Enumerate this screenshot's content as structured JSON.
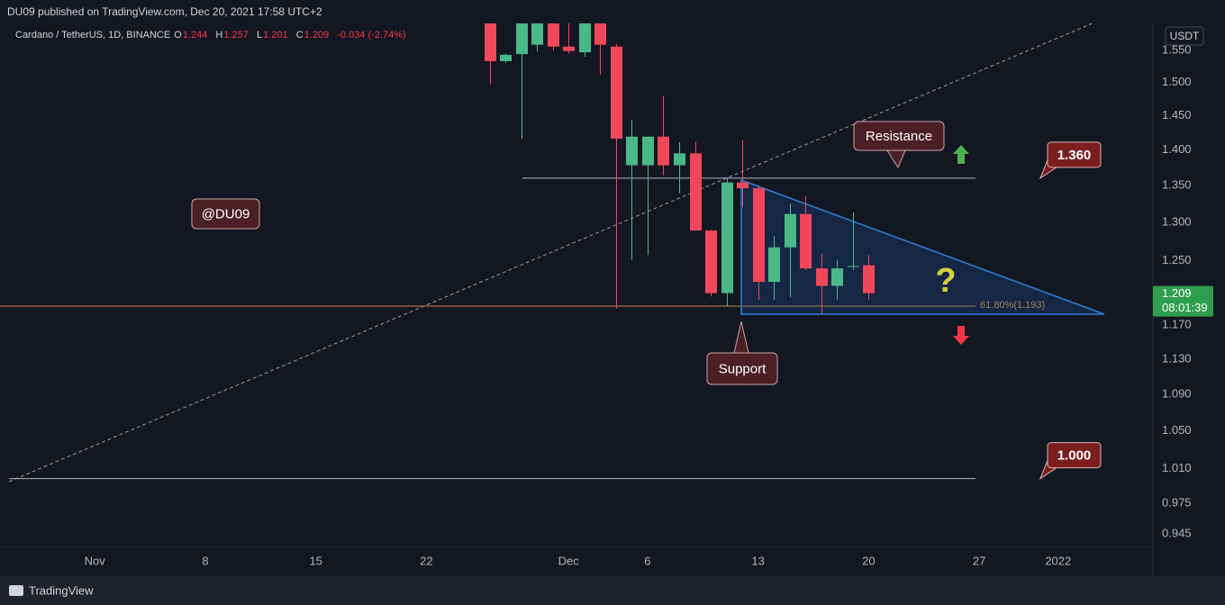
{
  "header": {
    "published": "DU09 published on TradingView.com, Dec 20, 2021 17:58 UTC+2"
  },
  "footer": {
    "brand": "TradingView"
  },
  "chart_data": {
    "type": "candlestick",
    "legend": {
      "symbol": "Cardano / TetherUS, 1D, BINANCE",
      "o_key": "O",
      "open": "1.244",
      "h_key": "H",
      "high": "1.257",
      "l_key": "L",
      "low": "1.201",
      "c_key": "C",
      "close": "1.209",
      "change": "-0.034 (-2.74%)"
    },
    "unit": "USDT",
    "log_scale": true,
    "up_color": "#4bb889",
    "down_color": "#f0485a",
    "x": [
      "2021-11-26",
      "2021-11-27",
      "2021-11-28",
      "2021-11-29",
      "2021-11-30",
      "2021-12-01",
      "2021-12-02",
      "2021-12-03",
      "2021-12-04",
      "2021-12-05",
      "2021-12-06",
      "2021-12-07",
      "2021-12-08",
      "2021-12-09",
      "2021-12-10",
      "2021-12-11",
      "2021-12-12",
      "2021-12-13",
      "2021-12-14",
      "2021-12-15",
      "2021-12-16",
      "2021-12-17",
      "2021-12-18",
      "2021-12-19",
      "2021-12-20"
    ],
    "open": [
      1.61,
      1.533,
      1.544,
      1.559,
      1.6,
      1.556,
      1.547,
      1.6,
      1.556,
      1.378,
      1.378,
      1.419,
      1.378,
      1.395,
      1.289,
      1.209,
      1.354,
      1.346,
      1.223,
      1.267,
      1.311,
      1.24,
      1.218,
      1.242,
      1.244
    ],
    "high": [
      1.625,
      1.545,
      1.61,
      1.625,
      1.62,
      1.6,
      1.61,
      1.61,
      1.56,
      1.444,
      1.419,
      1.479,
      1.411,
      1.411,
      1.29,
      1.36,
      1.414,
      1.35,
      1.282,
      1.325,
      1.335,
      1.259,
      1.251,
      1.313,
      1.257
    ],
    "low": [
      1.497,
      1.53,
      1.416,
      1.548,
      1.55,
      1.545,
      1.54,
      1.512,
      1.19,
      1.251,
      1.257,
      1.364,
      1.339,
      1.289,
      1.205,
      1.193,
      1.32,
      1.201,
      1.201,
      1.204,
      1.238,
      1.184,
      1.201,
      1.238,
      1.201
    ],
    "close": [
      1.533,
      1.543,
      1.6,
      1.6,
      1.556,
      1.549,
      1.6,
      1.559,
      1.416,
      1.419,
      1.419,
      1.378,
      1.395,
      1.289,
      1.209,
      1.354,
      1.346,
      1.223,
      1.267,
      1.311,
      1.24,
      1.218,
      1.24,
      1.243,
      1.209
    ],
    "xlim": [
      "2021-10-26",
      "2022-01-07"
    ],
    "xticks": [
      {
        "value": "2021-11-01",
        "label": "Nov"
      },
      {
        "value": "2021-11-08",
        "label": "8"
      },
      {
        "value": "2021-11-15",
        "label": "15"
      },
      {
        "value": "2021-11-22",
        "label": "22"
      },
      {
        "value": "2021-12-01",
        "label": "Dec"
      },
      {
        "value": "2021-12-06",
        "label": "6"
      },
      {
        "value": "2021-12-13",
        "label": "13"
      },
      {
        "value": "2021-12-20",
        "label": "20"
      },
      {
        "value": "2021-12-27",
        "label": "27"
      },
      {
        "value": "2022-01-01",
        "label": "2022"
      }
    ],
    "ylim": [
      0.932,
      1.632
    ],
    "yticks": [
      {
        "value": 1.55,
        "label": "1.550"
      },
      {
        "value": 1.5,
        "label": "1.500"
      },
      {
        "value": 1.45,
        "label": "1.450"
      },
      {
        "value": 1.4,
        "label": "1.400"
      },
      {
        "value": 1.35,
        "label": "1.350"
      },
      {
        "value": 1.3,
        "label": "1.300"
      },
      {
        "value": 1.25,
        "label": "1.250"
      },
      {
        "value": 1.17,
        "label": "1.170"
      },
      {
        "value": 1.13,
        "label": "1.130"
      },
      {
        "value": 1.09,
        "label": "1.090"
      },
      {
        "value": 1.05,
        "label": "1.050"
      },
      {
        "value": 1.01,
        "label": "1.010"
      },
      {
        "value": 0.975,
        "label": "0.975"
      },
      {
        "value": 0.945,
        "label": "0.945"
      }
    ],
    "levels": [
      {
        "value": 1.36,
        "label": "1.360"
      },
      {
        "value": 1.0,
        "label": "1.000"
      }
    ],
    "fib": {
      "value": 1.193,
      "label": "61.80%(1.193)",
      "color": "#c98a3a"
    },
    "last_price": {
      "value": 1.209,
      "label": "1.209",
      "countdown": "08:01:39"
    },
    "callouts": [
      "Resistance",
      "Support",
      "@DU09"
    ],
    "question": "?"
  }
}
